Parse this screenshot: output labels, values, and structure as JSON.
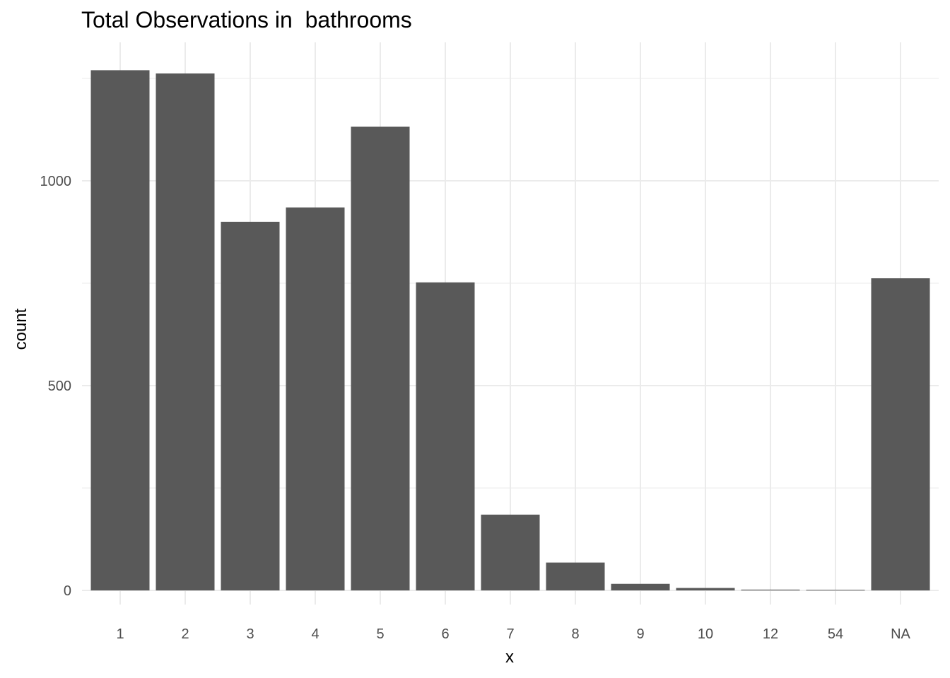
{
  "chart_data": {
    "type": "bar",
    "title": "Total Observations in  bathrooms",
    "xlabel": "x",
    "ylabel": "count",
    "categories": [
      "1",
      "2",
      "3",
      "4",
      "5",
      "6",
      "7",
      "8",
      "9",
      "10",
      "12",
      "54",
      "NA"
    ],
    "values": [
      1270,
      1262,
      900,
      935,
      1132,
      752,
      185,
      68,
      16,
      6,
      2,
      1,
      762
    ],
    "ylim": [
      0,
      1270
    ],
    "yticks": [
      0,
      500,
      1000
    ],
    "grid": true,
    "bar_color": "#595959",
    "grid_color": "#ebebeb"
  }
}
